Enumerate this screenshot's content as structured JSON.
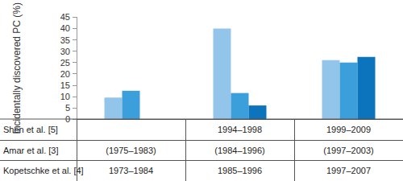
{
  "chart_data": {
    "type": "bar",
    "y_label": "Incidentally discovered PC (%)",
    "categories": [
      null,
      null,
      null
    ],
    "series": [
      {
        "name": "Shen et al. [5]",
        "color": "#93c5ea",
        "values": [
          9.5,
          40,
          26
        ],
        "periods": [
          null,
          "1994–1998",
          "1999–2009"
        ]
      },
      {
        "name": "Amar et al. [3]",
        "color": "#3a9fdb",
        "values": [
          12.5,
          11.5,
          25
        ],
        "periods": [
          "(1975–1983)",
          "(1984–1996)",
          "(1997–2003)"
        ]
      },
      {
        "name": "Kopetschke et al. [4]",
        "color": "#0b74bd",
        "values": [
          null,
          6,
          27.5
        ],
        "periods": [
          "1973–1984",
          "1985–1996",
          "1997–2007"
        ]
      }
    ],
    "ylim": [
      0,
      45
    ],
    "yticks": [
      0,
      5,
      10,
      15,
      20,
      25,
      30,
      35,
      40,
      45
    ],
    "grid": false
  }
}
